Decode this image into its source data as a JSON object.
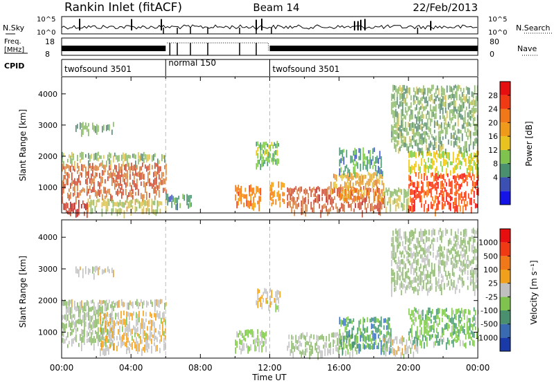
{
  "header": {
    "station": "Rankin Inlet (fitACF)",
    "beam": "Beam 14",
    "date": "22/Feb/2013"
  },
  "top_panels": {
    "nsky_label": "N.Sky",
    "nsky_ticks": [
      "10^5",
      "10^0"
    ],
    "nsearch_label": "N.Search",
    "nsearch_ticks": [
      "10^5",
      "10^0"
    ],
    "freq_label_line1": "Freq.",
    "freq_label_line2": "[MHz]",
    "freq_ticks": [
      "18",
      "8"
    ],
    "nave_label": "Nave",
    "nave_ticks": [
      "80",
      "0"
    ],
    "cpid_label": "CPID"
  },
  "cpid_segments": [
    {
      "name": "twofsound 3501",
      "start_h": 0,
      "end_h": 6
    },
    {
      "name": "normal 150",
      "start_h": 6,
      "end_h": 12
    },
    {
      "name": "twofsound 3501",
      "start_h": 12,
      "end_h": 24
    }
  ],
  "chart_data": [
    {
      "type": "heatmap",
      "title": "Power",
      "xlabel": "Time UT",
      "ylabel": "Slant Range [km]",
      "x_ticks": [
        "00:00",
        "04:00",
        "08:00",
        "12:00",
        "16:00",
        "20:00",
        "00:00"
      ],
      "xlim_hours": [
        0,
        24
      ],
      "y_ticks": [
        "1000",
        "2000",
        "3000",
        "4000"
      ],
      "ylim": [
        180,
        4550
      ],
      "colorbar_label": "Power [dB]",
      "colorbar_ticks": [
        "4",
        "8",
        "12",
        "16",
        "20",
        "24",
        "28"
      ],
      "colorbar_range": [
        0,
        30
      ],
      "colors": [
        "#1414e6",
        "#3c50b4",
        "#4a8f6e",
        "#7fc24e",
        "#e8c21e",
        "#f09a1c",
        "#f07818",
        "#f03a14",
        "#e60e0e"
      ],
      "mode_change_hours": [
        6,
        12
      ],
      "regions": [
        {
          "t": [
            0.0,
            6.0
          ],
          "r": [
            700,
            1800
          ],
          "v": 23
        },
        {
          "t": [
            0.0,
            6.0
          ],
          "r": [
            1800,
            2150
          ],
          "v": 12
        },
        {
          "t": [
            0.0,
            1.5
          ],
          "r": [
            200,
            600
          ],
          "v": 27
        },
        {
          "t": [
            1.5,
            6.0
          ],
          "r": [
            200,
            650
          ],
          "v": 14
        },
        {
          "t": [
            0.8,
            3.0
          ],
          "r": [
            2800,
            3100
          ],
          "v": 10
        },
        {
          "t": [
            6.0,
            7.5
          ],
          "r": [
            400,
            800
          ],
          "v": 8
        },
        {
          "t": [
            10.0,
            11.5
          ],
          "r": [
            400,
            1100
          ],
          "v": 22
        },
        {
          "t": [
            11.2,
            12.5
          ],
          "r": [
            1700,
            2500
          ],
          "v": 11
        },
        {
          "t": [
            12.0,
            12.8
          ],
          "r": [
            400,
            1200
          ],
          "v": 20
        },
        {
          "t": [
            13.0,
            18.6
          ],
          "r": [
            250,
            1050
          ],
          "v": 24
        },
        {
          "t": [
            15.5,
            18.6
          ],
          "r": [
            650,
            1500
          ],
          "v": 18
        },
        {
          "t": [
            16.0,
            18.5
          ],
          "r": [
            1500,
            2300
          ],
          "v": 9
        },
        {
          "t": [
            18.6,
            20.0
          ],
          "r": [
            300,
            1000
          ],
          "v": 13
        },
        {
          "t": [
            20.0,
            24.0
          ],
          "r": [
            300,
            1500
          ],
          "v": 25
        },
        {
          "t": [
            20.0,
            24.0
          ],
          "r": [
            1500,
            2200
          ],
          "v": 14
        },
        {
          "t": [
            19.0,
            24.0
          ],
          "r": [
            2200,
            4300
          ],
          "v": 11
        }
      ]
    },
    {
      "type": "heatmap",
      "title": "Velocity",
      "xlabel": "Time UT",
      "ylabel": "Slant Range [km]",
      "x_ticks": [
        "00:00",
        "04:00",
        "08:00",
        "12:00",
        "16:00",
        "20:00",
        "00:00"
      ],
      "xlim_hours": [
        0,
        24
      ],
      "y_ticks": [
        "1000",
        "2000",
        "3000",
        "4000"
      ],
      "ylim": [
        180,
        4550
      ],
      "colorbar_label": "Velocity [m s⁻¹]",
      "colorbar_ticks": [
        "1000",
        "500",
        "100",
        "25",
        "-25",
        "-100",
        "-500",
        "-1000"
      ],
      "colorbar_range": [
        -1200,
        1200
      ],
      "colors": [
        "#1a3aa8",
        "#3a6ab0",
        "#4a8f6e",
        "#7fc24e",
        "#c0c0c0",
        "#f0a01c",
        "#f07818",
        "#f03a14",
        "#e60e0e"
      ],
      "mode_change_hours": [
        6,
        12
      ],
      "regions": [
        {
          "t": [
            0.0,
            3.0
          ],
          "r": [
            600,
            1900
          ],
          "v": -150
        },
        {
          "t": [
            2.2,
            6.0
          ],
          "r": [
            400,
            1700
          ],
          "v": 80
        },
        {
          "t": [
            0.0,
            6.0
          ],
          "r": [
            1800,
            2050
          ],
          "v": 0
        },
        {
          "t": [
            0.8,
            3.0
          ],
          "r": [
            2800,
            3100
          ],
          "v": 0
        },
        {
          "t": [
            10.0,
            11.8
          ],
          "r": [
            400,
            1100
          ],
          "v": -150
        },
        {
          "t": [
            11.2,
            12.6
          ],
          "r": [
            1800,
            2400
          ],
          "v": 80
        },
        {
          "t": [
            13.0,
            17.0
          ],
          "r": [
            300,
            1000
          ],
          "v": -150
        },
        {
          "t": [
            16.0,
            19.0
          ],
          "r": [
            400,
            1500
          ],
          "v": -500
        },
        {
          "t": [
            18.5,
            20.5
          ],
          "r": [
            300,
            900
          ],
          "v": 60
        },
        {
          "t": [
            20.0,
            24.0
          ],
          "r": [
            600,
            1800
          ],
          "v": -300
        },
        {
          "t": [
            19.0,
            24.0
          ],
          "r": [
            2300,
            4300
          ],
          "v": -150
        }
      ]
    }
  ]
}
